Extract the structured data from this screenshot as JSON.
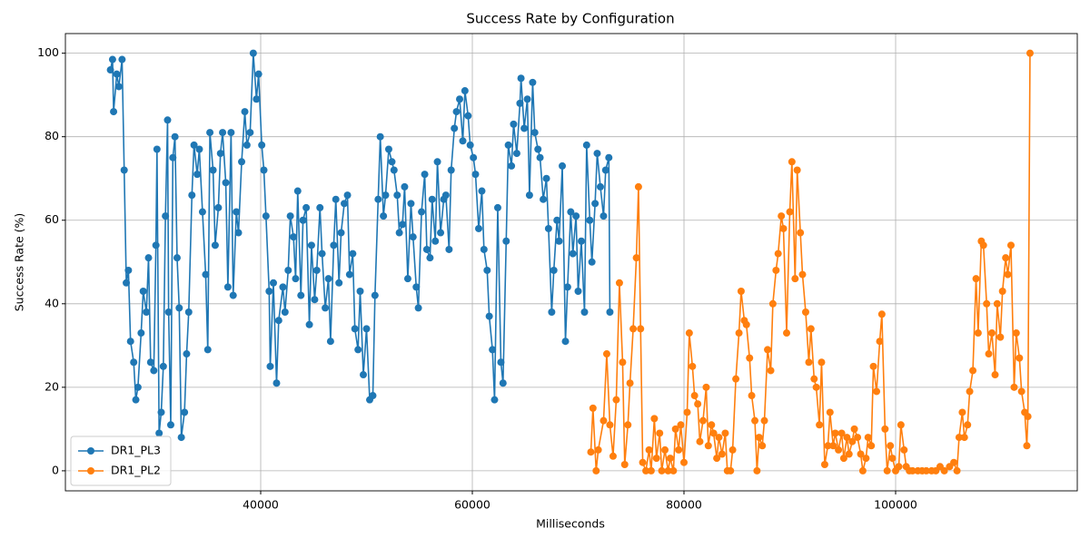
{
  "chart_data": {
    "type": "line",
    "title": "Success Rate by Configuration",
    "xlabel": "Milliseconds",
    "ylabel": "Success Rate (%)",
    "xlim": [
      21545,
      117167
    ],
    "ylim": [
      -4.8,
      104.7
    ],
    "xticks": [
      40000,
      60000,
      80000,
      100000
    ],
    "yticks": [
      0,
      20,
      40,
      60,
      80,
      100
    ],
    "grid": true,
    "legend": "lower left",
    "marker": "circle",
    "series": [
      {
        "name": "DR1_PL3",
        "color": "#1f77b4",
        "x": [
          25800,
          26000,
          26100,
          26400,
          26600,
          26900,
          27100,
          27300,
          27500,
          27700,
          28000,
          28200,
          28400,
          28700,
          28900,
          29200,
          29400,
          29600,
          29900,
          30100,
          30200,
          30400,
          30600,
          30800,
          31000,
          31200,
          31300,
          31500,
          31700,
          31900,
          32100,
          32300,
          32500,
          32800,
          33000,
          33200,
          33500,
          33700,
          34000,
          34200,
          34500,
          34800,
          35000,
          35200,
          35500,
          35700,
          36000,
          36200,
          36400,
          36700,
          36900,
          37200,
          37400,
          37700,
          37900,
          38200,
          38500,
          38700,
          39000,
          39300,
          39600,
          39800,
          40100,
          40300,
          40500,
          40800,
          40900,
          41200,
          41500,
          41700,
          42100,
          42300,
          42600,
          42800,
          43100,
          43300,
          43500,
          43800,
          44000,
          44300,
          44600,
          44800,
          45100,
          45300,
          45600,
          45800,
          46100,
          46400,
          46600,
          46900,
          47100,
          47400,
          47600,
          47900,
          48200,
          48400,
          48700,
          48900,
          49200,
          49400,
          49700,
          50000,
          50300,
          50600,
          50800,
          51100,
          51300,
          51600,
          51800,
          52100,
          52400,
          52600,
          52900,
          53100,
          53400,
          53600,
          53900,
          54200,
          54400,
          54700,
          54900,
          55200,
          55500,
          55700,
          56000,
          56200,
          56500,
          56700,
          57000,
          57300,
          57500,
          57800,
          58000,
          58300,
          58500,
          58800,
          59100,
          59300,
          59600,
          59800,
          60100,
          60300,
          60600,
          60900,
          61100,
          61400,
          61600,
          61900,
          62100,
          62400,
          62700,
          62900,
          63200,
          63400,
          63700,
          63900,
          64200,
          64500,
          64600,
          64900,
          65200,
          65400,
          65700,
          65900,
          66200,
          66400,
          66700,
          67000,
          67200,
          67500,
          67700,
          68000,
          68200,
          68500,
          68800,
          69000,
          69300,
          69500,
          69800,
          70000,
          70300,
          70600,
          70800,
          71100,
          71300,
          71600,
          71800,
          72100,
          72400,
          72600,
          72900,
          73000
        ],
        "values": [
          96,
          98.5,
          86,
          95,
          92,
          98.5,
          72,
          45,
          48,
          31,
          26,
          17,
          20,
          33,
          43,
          38,
          51,
          26,
          24,
          54,
          77,
          9,
          14,
          25,
          61,
          84,
          38,
          11,
          75,
          80,
          51,
          39,
          8,
          14,
          28,
          38,
          66,
          78,
          71,
          77,
          62,
          47,
          29,
          81,
          72,
          54,
          63,
          76,
          81,
          69,
          44,
          81,
          42,
          62,
          57,
          74,
          86,
          78,
          81,
          100,
          89,
          95,
          78,
          72,
          61,
          43,
          25,
          45,
          21,
          36,
          44,
          38,
          48,
          61,
          56,
          46,
          67,
          42,
          60,
          63,
          35,
          54,
          41,
          48,
          63,
          52,
          39,
          46,
          31,
          54,
          65,
          45,
          57,
          64,
          66,
          47,
          52,
          34,
          29,
          43,
          23,
          34,
          17,
          18,
          42,
          65,
          80,
          61,
          66,
          77,
          74,
          72,
          66,
          57,
          59,
          68,
          46,
          64,
          56,
          44,
          39,
          62,
          71,
          53,
          51,
          65,
          55,
          74,
          57,
          65,
          66,
          53,
          72,
          82,
          86,
          89,
          79,
          91,
          85,
          78,
          75,
          71,
          58,
          67,
          53,
          48,
          37,
          29,
          17,
          63,
          26,
          21,
          55,
          78,
          73,
          83,
          76,
          88,
          94,
          82,
          89,
          66,
          93,
          81,
          77,
          75,
          65,
          70,
          58,
          38,
          48,
          60,
          55,
          73,
          31,
          44,
          62,
          52,
          61,
          43,
          55,
          38,
          78,
          60,
          50,
          64,
          76,
          68,
          61,
          72,
          75,
          38
        ]
      },
      {
        "name": "DR1_PL2",
        "color": "#ff7f0e",
        "x": [
          71200,
          71400,
          71700,
          71900,
          72400,
          72700,
          73000,
          73300,
          73600,
          73900,
          74200,
          74400,
          74700,
          74900,
          75200,
          75500,
          75700,
          75900,
          76100,
          76400,
          76700,
          76900,
          77200,
          77400,
          77700,
          77900,
          78200,
          78500,
          78700,
          79000,
          79200,
          79500,
          79700,
          80000,
          80300,
          80500,
          80800,
          81000,
          81300,
          81500,
          81800,
          82100,
          82300,
          82600,
          82800,
          83100,
          83300,
          83600,
          83900,
          84100,
          84400,
          84600,
          84900,
          85200,
          85400,
          85700,
          85900,
          86200,
          86400,
          86700,
          86900,
          87100,
          87400,
          87600,
          87900,
          88200,
          88400,
          88700,
          88900,
          89200,
          89400,
          89700,
          90000,
          90200,
          90500,
          90700,
          91000,
          91200,
          91500,
          91800,
          92000,
          92300,
          92500,
          92800,
          93000,
          93300,
          93600,
          93800,
          94100,
          94300,
          94600,
          94900,
          95100,
          95400,
          95600,
          95900,
          96100,
          96400,
          96700,
          96900,
          97200,
          97400,
          97700,
          97900,
          98200,
          98500,
          98700,
          99000,
          99200,
          99500,
          99700,
          100000,
          100300,
          100500,
          100800,
          101000,
          101300,
          101600,
          102100,
          102500,
          102900,
          103400,
          103800,
          104200,
          104600,
          105100,
          105500,
          105800,
          106000,
          106300,
          106500,
          106800,
          107000,
          107300,
          107600,
          107800,
          108100,
          108300,
          108600,
          108800,
          109100,
          109400,
          109600,
          109900,
          110100,
          110400,
          110600,
          110900,
          111200,
          111400,
          111700,
          111900,
          112200,
          112400,
          112500,
          112700
        ],
        "values": [
          4.5,
          15,
          0,
          5,
          12,
          28,
          11,
          3.5,
          17,
          45,
          26,
          1.5,
          11,
          21,
          34,
          51,
          68,
          34,
          2,
          0,
          5,
          0,
          12.5,
          3,
          9,
          0,
          5,
          0,
          3,
          0,
          10,
          5,
          11,
          2,
          14,
          33,
          25,
          18,
          16,
          7,
          12,
          20,
          6,
          11,
          9,
          3,
          8,
          4,
          9,
          0,
          0,
          5,
          22,
          33,
          43,
          36,
          35,
          27,
          18,
          12,
          0,
          8,
          6,
          12,
          29,
          24,
          40,
          48,
          52,
          61,
          58,
          33,
          62,
          74,
          46,
          72,
          57,
          47,
          38,
          26,
          34,
          22,
          20,
          11,
          26,
          1.5,
          6,
          14,
          6,
          9,
          5,
          9,
          3,
          8,
          4,
          7,
          10,
          8,
          4,
          0,
          3,
          8,
          6,
          25,
          19,
          31,
          37.5,
          10,
          0,
          6,
          3,
          0,
          1,
          11,
          5,
          1,
          0,
          0,
          0,
          0,
          0,
          0,
          0,
          1,
          0,
          1,
          2,
          0,
          8,
          14,
          8,
          11,
          19,
          24,
          46,
          33,
          55,
          54,
          40,
          28,
          33,
          23,
          40,
          32,
          43,
          51,
          47,
          54,
          20,
          33,
          27,
          19,
          14,
          6,
          13,
          100
        ]
      }
    ]
  }
}
